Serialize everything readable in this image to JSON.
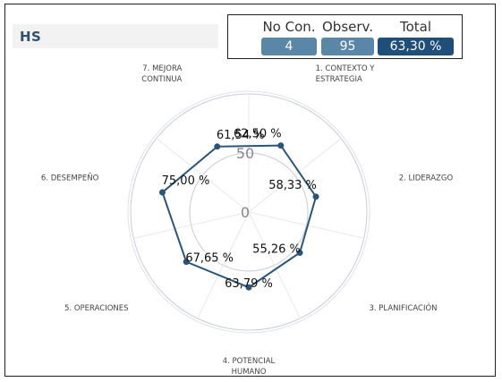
{
  "header": {
    "title": "HS"
  },
  "kpis": [
    {
      "label": "No Con.",
      "value": "4"
    },
    {
      "label": "Observ.",
      "value": "95"
    },
    {
      "label": "Total",
      "value": "63,30 %"
    }
  ],
  "colors": {
    "series": "#2b5578",
    "kpi_light": "#5a87a8",
    "kpi_dark": "#1f4e79",
    "grid": "#c8ccd8"
  },
  "chart_data": {
    "type": "radar",
    "categories": [
      "1. CONTEXTO Y ESTRATEGIA",
      "2. LIDERAZGO",
      "3. PLANIFICACIÓN",
      "4. POTENCIAL HUMANO",
      "5. OPERACIONES",
      "6. DESEMPEÑO",
      "7. MEJORA CONTINUA"
    ],
    "category_lines": [
      [
        "1. CONTEXTO Y",
        "ESTRATEGIA"
      ],
      [
        "2. LIDERAZGO"
      ],
      [
        "3. PLANIFICACIÓN"
      ],
      [
        "4. POTENCIAL",
        "HUMANO"
      ],
      [
        "5. OPERACIONES"
      ],
      [
        "6. DESEMPEÑO"
      ],
      [
        "7. MEJORA",
        "CONTINUA"
      ]
    ],
    "values": [
      62.5,
      58.33,
      55.26,
      63.79,
      67.65,
      75.0,
      61.54
    ],
    "value_labels": [
      "62,50 %",
      "58,33 %",
      "55,26 %",
      "63,79 %",
      "67,65 %",
      "75,00 %",
      "61,54 %"
    ],
    "ring_ticks": [
      0,
      50
    ],
    "range": [
      0,
      100
    ]
  }
}
